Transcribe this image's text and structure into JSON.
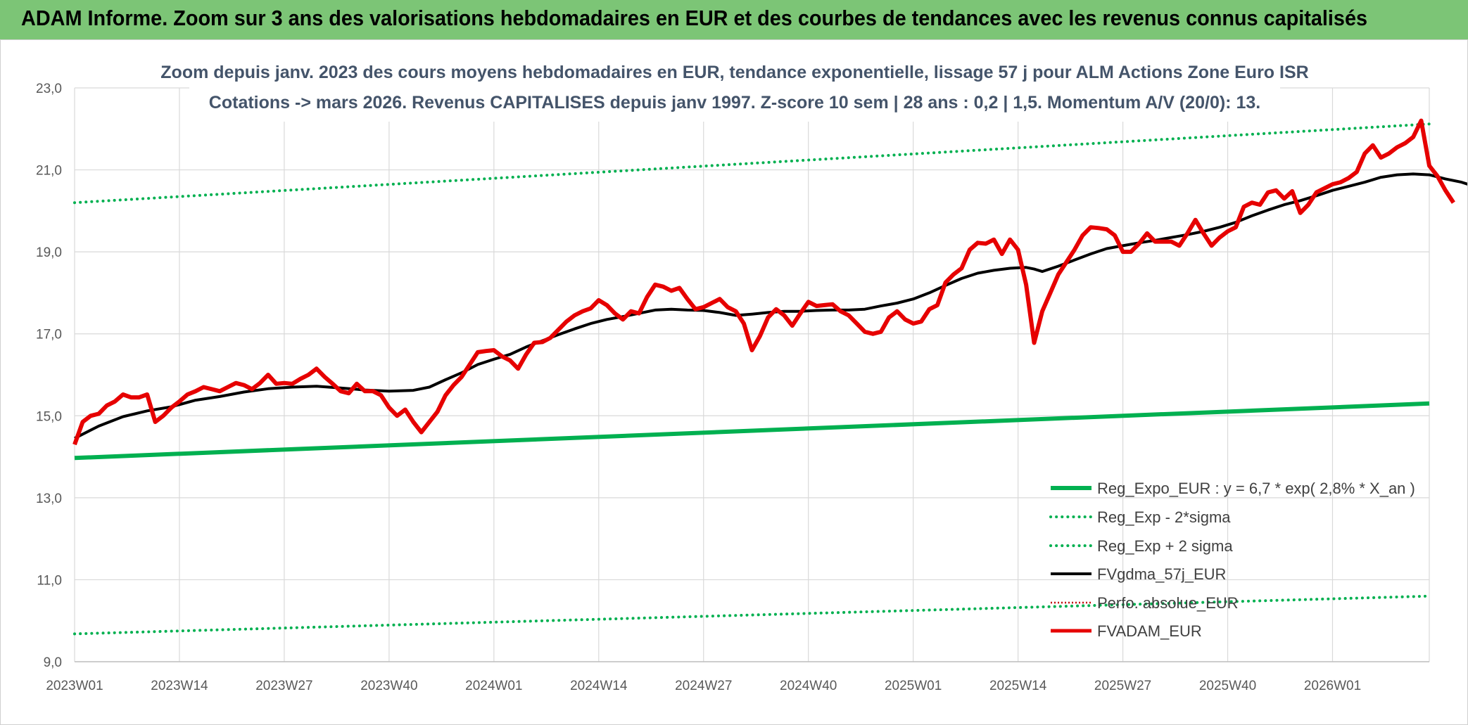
{
  "banner": {
    "title": "ADAM Informe. Zoom sur 3 ans des valorisations hebdomadaires en EUR et des courbes de tendances avec les revenus connus capitalisés"
  },
  "chart_data": {
    "type": "line",
    "title_lines": [
      "Zoom depuis janv. 2023 des cours moyens hebdomadaires en EUR, tendance exponentielle, lissage 57 j pour ALM Actions Zone Euro ISR",
      "Cotations -> mars 2026. Revenus CAPITALISES depuis janv 1997. Z-score 10 sem | 28 ans : 0,2 | 1,5. Momentum A/V (20/0): 13."
    ],
    "ylim": [
      9,
      23
    ],
    "y_ticks": [
      "9,0",
      "11,0",
      "13,0",
      "15,0",
      "17,0",
      "19,0",
      "21,0",
      "23,0"
    ],
    "x_count": 168,
    "x_ticks": [
      {
        "index": 0,
        "label": "2023W01"
      },
      {
        "index": 13,
        "label": "2023W14"
      },
      {
        "index": 26,
        "label": "2023W27"
      },
      {
        "index": 39,
        "label": "2023W40"
      },
      {
        "index": 52,
        "label": "2024W01"
      },
      {
        "index": 65,
        "label": "2024W14"
      },
      {
        "index": 78,
        "label": "2024W27"
      },
      {
        "index": 91,
        "label": "2024W40"
      },
      {
        "index": 104,
        "label": "2025W01"
      },
      {
        "index": 117,
        "label": "2025W14"
      },
      {
        "index": 130,
        "label": "2025W27"
      },
      {
        "index": 143,
        "label": "2025W40"
      },
      {
        "index": 156,
        "label": "2026W01"
      }
    ],
    "series": [
      {
        "name": "Reg_Expo_EUR : y = 6,7 * exp( 2,8% *  X_an )",
        "color": "#00b050",
        "style": "solid-thick",
        "linear": {
          "start": 13.97,
          "end": 15.3
        }
      },
      {
        "name": "Reg_Exp - 2*sigma",
        "color": "#00b050",
        "style": "dotted",
        "linear": {
          "start": 9.68,
          "end": 10.6
        }
      },
      {
        "name": "Reg_Exp + 2 sigma",
        "color": "#00b050",
        "style": "dotted",
        "linear": {
          "start": 20.2,
          "end": 22.12
        }
      },
      {
        "name": "FVgdma_57j_EUR",
        "color": "#000000",
        "style": "solid",
        "points": [
          [
            0,
            14.45
          ],
          [
            3,
            14.75
          ],
          [
            6,
            14.98
          ],
          [
            9,
            15.12
          ],
          [
            12,
            15.22
          ],
          [
            15,
            15.38
          ],
          [
            18,
            15.47
          ],
          [
            21,
            15.58
          ],
          [
            24,
            15.66
          ],
          [
            27,
            15.7
          ],
          [
            30,
            15.72
          ],
          [
            33,
            15.68
          ],
          [
            36,
            15.63
          ],
          [
            39,
            15.6
          ],
          [
            42,
            15.62
          ],
          [
            44,
            15.7
          ],
          [
            46,
            15.88
          ],
          [
            48,
            16.05
          ],
          [
            50,
            16.25
          ],
          [
            52,
            16.38
          ],
          [
            54,
            16.5
          ],
          [
            56,
            16.68
          ],
          [
            58,
            16.83
          ],
          [
            60,
            16.98
          ],
          [
            62,
            17.12
          ],
          [
            64,
            17.25
          ],
          [
            66,
            17.35
          ],
          [
            68,
            17.42
          ],
          [
            70,
            17.5
          ],
          [
            72,
            17.58
          ],
          [
            74,
            17.6
          ],
          [
            76,
            17.58
          ],
          [
            78,
            17.57
          ],
          [
            80,
            17.52
          ],
          [
            82,
            17.45
          ],
          [
            84,
            17.48
          ],
          [
            86,
            17.52
          ],
          [
            88,
            17.55
          ],
          [
            90,
            17.55
          ],
          [
            92,
            17.57
          ],
          [
            94,
            17.58
          ],
          [
            96,
            17.58
          ],
          [
            98,
            17.6
          ],
          [
            100,
            17.68
          ],
          [
            102,
            17.75
          ],
          [
            104,
            17.85
          ],
          [
            106,
            18.0
          ],
          [
            108,
            18.18
          ],
          [
            110,
            18.35
          ],
          [
            112,
            18.48
          ],
          [
            114,
            18.55
          ],
          [
            116,
            18.6
          ],
          [
            118,
            18.62
          ],
          [
            119,
            18.58
          ],
          [
            120,
            18.52
          ],
          [
            122,
            18.65
          ],
          [
            124,
            18.8
          ],
          [
            126,
            18.95
          ],
          [
            128,
            19.08
          ],
          [
            130,
            19.15
          ],
          [
            132,
            19.22
          ],
          [
            134,
            19.28
          ],
          [
            136,
            19.35
          ],
          [
            138,
            19.42
          ],
          [
            140,
            19.5
          ],
          [
            142,
            19.6
          ],
          [
            144,
            19.72
          ],
          [
            146,
            19.88
          ],
          [
            148,
            20.02
          ],
          [
            150,
            20.15
          ],
          [
            152,
            20.25
          ],
          [
            154,
            20.37
          ],
          [
            156,
            20.5
          ],
          [
            158,
            20.6
          ],
          [
            160,
            20.7
          ],
          [
            162,
            20.82
          ],
          [
            164,
            20.88
          ],
          [
            166,
            20.9
          ],
          [
            168,
            20.88
          ],
          [
            170,
            20.78
          ],
          [
            172,
            20.7
          ],
          [
            174,
            20.57
          ]
        ]
      },
      {
        "name": "Perfo. absolue_EUR",
        "color": "#c00000",
        "style": "dotted-thin"
      },
      {
        "name": "FVADAM_EUR",
        "color": "#e60000",
        "style": "solid-thick",
        "points": [
          [
            0,
            14.3
          ],
          [
            1,
            14.85
          ],
          [
            2,
            15.0
          ],
          [
            3,
            15.05
          ],
          [
            4,
            15.25
          ],
          [
            5,
            15.35
          ],
          [
            6,
            15.52
          ],
          [
            7,
            15.45
          ],
          [
            8,
            15.45
          ],
          [
            9,
            15.52
          ],
          [
            10,
            14.85
          ],
          [
            11,
            15.0
          ],
          [
            12,
            15.2
          ],
          [
            13,
            15.35
          ],
          [
            14,
            15.52
          ],
          [
            15,
            15.6
          ],
          [
            16,
            15.7
          ],
          [
            17,
            15.65
          ],
          [
            18,
            15.6
          ],
          [
            19,
            15.7
          ],
          [
            20,
            15.8
          ],
          [
            21,
            15.75
          ],
          [
            22,
            15.65
          ],
          [
            23,
            15.8
          ],
          [
            24,
            16.0
          ],
          [
            25,
            15.78
          ],
          [
            26,
            15.8
          ],
          [
            27,
            15.78
          ],
          [
            28,
            15.9
          ],
          [
            29,
            16.0
          ],
          [
            30,
            16.15
          ],
          [
            31,
            15.95
          ],
          [
            32,
            15.78
          ],
          [
            33,
            15.6
          ],
          [
            34,
            15.55
          ],
          [
            35,
            15.78
          ],
          [
            36,
            15.6
          ],
          [
            37,
            15.6
          ],
          [
            38,
            15.5
          ],
          [
            39,
            15.2
          ],
          [
            40,
            15.0
          ],
          [
            41,
            15.15
          ],
          [
            42,
            14.85
          ],
          [
            43,
            14.6
          ],
          [
            44,
            14.85
          ],
          [
            45,
            15.1
          ],
          [
            46,
            15.5
          ],
          [
            47,
            15.75
          ],
          [
            48,
            15.95
          ],
          [
            49,
            16.25
          ],
          [
            50,
            16.55
          ],
          [
            51,
            16.58
          ],
          [
            52,
            16.6
          ],
          [
            53,
            16.45
          ],
          [
            54,
            16.35
          ],
          [
            55,
            16.15
          ],
          [
            56,
            16.5
          ],
          [
            57,
            16.78
          ],
          [
            58,
            16.8
          ],
          [
            59,
            16.9
          ],
          [
            60,
            17.1
          ],
          [
            61,
            17.3
          ],
          [
            62,
            17.45
          ],
          [
            63,
            17.55
          ],
          [
            64,
            17.62
          ],
          [
            65,
            17.82
          ],
          [
            66,
            17.7
          ],
          [
            67,
            17.5
          ],
          [
            68,
            17.35
          ],
          [
            69,
            17.55
          ],
          [
            70,
            17.5
          ],
          [
            71,
            17.9
          ],
          [
            72,
            18.2
          ],
          [
            73,
            18.15
          ],
          [
            74,
            18.05
          ],
          [
            75,
            18.12
          ],
          [
            76,
            17.85
          ],
          [
            77,
            17.6
          ],
          [
            78,
            17.65
          ],
          [
            79,
            17.75
          ],
          [
            80,
            17.85
          ],
          [
            81,
            17.65
          ],
          [
            82,
            17.55
          ],
          [
            83,
            17.25
          ],
          [
            84,
            16.6
          ],
          [
            85,
            16.95
          ],
          [
            86,
            17.4
          ],
          [
            87,
            17.6
          ],
          [
            88,
            17.45
          ],
          [
            89,
            17.2
          ],
          [
            90,
            17.5
          ],
          [
            91,
            17.78
          ],
          [
            92,
            17.68
          ],
          [
            93,
            17.7
          ],
          [
            94,
            17.72
          ],
          [
            95,
            17.55
          ],
          [
            96,
            17.45
          ],
          [
            97,
            17.25
          ],
          [
            98,
            17.05
          ],
          [
            99,
            17.0
          ],
          [
            100,
            17.05
          ],
          [
            101,
            17.4
          ],
          [
            102,
            17.55
          ],
          [
            103,
            17.35
          ],
          [
            104,
            17.25
          ],
          [
            105,
            17.3
          ],
          [
            106,
            17.6
          ],
          [
            107,
            17.7
          ],
          [
            108,
            18.25
          ],
          [
            109,
            18.45
          ],
          [
            110,
            18.6
          ],
          [
            111,
            19.05
          ],
          [
            112,
            19.22
          ],
          [
            113,
            19.2
          ],
          [
            114,
            19.3
          ],
          [
            115,
            18.95
          ],
          [
            116,
            19.3
          ],
          [
            117,
            19.05
          ],
          [
            118,
            18.2
          ],
          [
            119,
            16.78
          ],
          [
            120,
            17.55
          ],
          [
            121,
            18.0
          ],
          [
            122,
            18.45
          ],
          [
            123,
            18.75
          ],
          [
            124,
            19.05
          ],
          [
            125,
            19.4
          ],
          [
            126,
            19.6
          ],
          [
            127,
            19.58
          ],
          [
            128,
            19.55
          ],
          [
            129,
            19.4
          ],
          [
            130,
            19.0
          ],
          [
            131,
            19.0
          ],
          [
            132,
            19.2
          ],
          [
            133,
            19.45
          ],
          [
            134,
            19.25
          ],
          [
            135,
            19.25
          ],
          [
            136,
            19.25
          ],
          [
            137,
            19.15
          ],
          [
            138,
            19.45
          ],
          [
            139,
            19.78
          ],
          [
            140,
            19.45
          ],
          [
            141,
            19.15
          ],
          [
            142,
            19.35
          ],
          [
            143,
            19.5
          ],
          [
            144,
            19.6
          ],
          [
            145,
            20.1
          ],
          [
            146,
            20.2
          ],
          [
            147,
            20.15
          ],
          [
            148,
            20.45
          ],
          [
            149,
            20.5
          ],
          [
            150,
            20.3
          ],
          [
            151,
            20.48
          ],
          [
            152,
            19.95
          ],
          [
            153,
            20.15
          ],
          [
            154,
            20.45
          ],
          [
            155,
            20.55
          ],
          [
            156,
            20.65
          ],
          [
            157,
            20.7
          ],
          [
            158,
            20.8
          ],
          [
            159,
            20.95
          ],
          [
            160,
            21.4
          ],
          [
            161,
            21.6
          ],
          [
            162,
            21.3
          ],
          [
            163,
            21.4
          ],
          [
            164,
            21.55
          ],
          [
            165,
            21.65
          ],
          [
            166,
            21.8
          ],
          [
            167,
            22.2
          ],
          [
            168,
            21.1
          ],
          [
            169,
            20.85
          ],
          [
            170,
            20.5
          ],
          [
            171,
            20.2
          ]
        ]
      }
    ],
    "legend_position": "bottom-right"
  }
}
